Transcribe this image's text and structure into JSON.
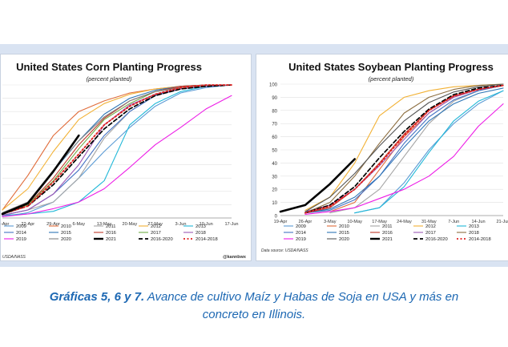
{
  "chart_data": [
    {
      "id": "corn",
      "type": "line",
      "title": "United States Corn Planting Progress",
      "subtitle": "(percent planted)",
      "xlabel": "",
      "ylabel": "",
      "ylim": [
        0,
        100
      ],
      "x_ticks": [
        "15-Apr",
        "22-Apr",
        "29-Apr",
        "6-May",
        "13-May",
        "20-May",
        "27-May",
        "3-Jun",
        "10-Jun",
        "17-Jun"
      ],
      "x": [
        0,
        1,
        2,
        3,
        4,
        5,
        6,
        7,
        8,
        9
      ],
      "series": [
        {
          "name": "2009",
          "color": "#5b9bd5",
          "dash": "solid",
          "width": 1.1,
          "values": [
            1,
            4,
            12,
            30,
            50,
            68,
            84,
            94,
            98,
            100
          ]
        },
        {
          "name": "2010",
          "color": "#e06c3a",
          "dash": "solid",
          "width": 1.1,
          "values": [
            6,
            32,
            62,
            80,
            88,
            94,
            97,
            99,
            100,
            100
          ]
        },
        {
          "name": "2011",
          "color": "#a5a5a5",
          "dash": "solid",
          "width": 1.1,
          "values": [
            2,
            6,
            12,
            30,
            60,
            80,
            92,
            97,
            99,
            100
          ]
        },
        {
          "name": "2012",
          "color": "#f2b134",
          "dash": "solid",
          "width": 1.1,
          "values": [
            6,
            22,
            50,
            74,
            86,
            93,
            97,
            99,
            100,
            100
          ]
        },
        {
          "name": "2013",
          "color": "#21b8d8",
          "dash": "solid",
          "width": 1.1,
          "values": [
            2,
            3,
            5,
            12,
            28,
            70,
            86,
            95,
            99,
            100
          ]
        },
        {
          "name": "2014",
          "color": "#4472c4",
          "dash": "solid",
          "width": 1.1,
          "values": [
            2,
            6,
            18,
            36,
            62,
            80,
            92,
            97,
            99,
            100
          ]
        },
        {
          "name": "2015",
          "color": "#2e75b6",
          "dash": "solid",
          "width": 1.1,
          "values": [
            3,
            12,
            35,
            58,
            78,
            90,
            96,
            99,
            100,
            100
          ]
        },
        {
          "name": "2016",
          "color": "#c0392b",
          "dash": "solid",
          "width": 1.1,
          "values": [
            3,
            10,
            30,
            55,
            75,
            88,
            95,
            99,
            100,
            100
          ]
        },
        {
          "name": "2017",
          "color": "#70ad47",
          "dash": "solid",
          "width": 1.1,
          "values": [
            3,
            10,
            28,
            52,
            74,
            86,
            95,
            98,
            100,
            100
          ]
        },
        {
          "name": "2018",
          "color": "#9b59b6",
          "dash": "solid",
          "width": 1.1,
          "values": [
            2,
            6,
            18,
            40,
            70,
            85,
            93,
            97,
            99,
            100
          ]
        },
        {
          "name": "2019",
          "color": "#ed1ce6",
          "dash": "solid",
          "width": 1.1,
          "values": [
            1,
            3,
            7,
            12,
            22,
            38,
            55,
            68,
            82,
            92
          ]
        },
        {
          "name": "2020",
          "color": "#808080",
          "dash": "solid",
          "width": 1.1,
          "values": [
            4,
            12,
            36,
            58,
            76,
            88,
            95,
            98,
            100,
            100
          ]
        },
        {
          "name": "2021",
          "color": "#000000",
          "dash": "solid",
          "width": 2.6,
          "values": [
            3,
            11,
            35,
            62,
            null,
            null,
            null,
            null,
            null,
            null
          ]
        },
        {
          "name": "2016-2020",
          "color": "#000000",
          "dash": "dashed",
          "width": 1.7,
          "values": [
            3,
            9,
            25,
            46,
            67,
            82,
            92,
            97,
            99,
            100
          ]
        },
        {
          "name": "2014-2018",
          "color": "#e02020",
          "dash": "dotted",
          "width": 1.8,
          "values": [
            3,
            9,
            27,
            48,
            70,
            84,
            93,
            98,
            100,
            100
          ]
        }
      ],
      "legend": [
        [
          "2009",
          "2010",
          "2011",
          "2012",
          "2013"
        ],
        [
          "2014",
          "2015",
          "2016",
          "2017",
          "2018"
        ],
        [
          "2019",
          "2020",
          "2021",
          "2016-2020",
          "2014-2018"
        ]
      ],
      "source": "USDA/NASS",
      "credit": "@kannbwx"
    },
    {
      "id": "soy",
      "type": "line",
      "title": "United States Soybean Planting Progress",
      "subtitle": "(percent planted)",
      "xlabel": "",
      "ylabel": "",
      "ylim": [
        0,
        100
      ],
      "y_ticks": [
        0,
        10,
        20,
        30,
        40,
        50,
        60,
        70,
        80,
        90,
        100
      ],
      "x_ticks": [
        "19-Apr",
        "26-Apr",
        "3-May",
        "10-May",
        "17-May",
        "24-May",
        "31-May",
        "7-Jun",
        "14-Jun",
        "21-Jun"
      ],
      "x": [
        0,
        1,
        2,
        3,
        4,
        5,
        6,
        7,
        8,
        9
      ],
      "series": [
        {
          "name": "2009",
          "color": "#5b9bd5",
          "dash": "solid",
          "width": 1.1,
          "values": [
            null,
            null,
            null,
            2,
            6,
            25,
            50,
            70,
            85,
            95
          ]
        },
        {
          "name": "2010",
          "color": "#e06c3a",
          "dash": "solid",
          "width": 1.1,
          "values": [
            null,
            null,
            3,
            10,
            35,
            60,
            78,
            90,
            96,
            99
          ]
        },
        {
          "name": "2011",
          "color": "#a5a5a5",
          "dash": "solid",
          "width": 1.1,
          "values": [
            null,
            null,
            2,
            6,
            20,
            45,
            70,
            87,
            95,
            99
          ]
        },
        {
          "name": "2012",
          "color": "#f2b134",
          "dash": "solid",
          "width": 1.1,
          "values": [
            null,
            4,
            14,
            40,
            76,
            90,
            95,
            98,
            99,
            100
          ]
        },
        {
          "name": "2013",
          "color": "#21b8d8",
          "dash": "solid",
          "width": 1.1,
          "values": [
            null,
            null,
            null,
            2,
            6,
            22,
            48,
            72,
            87,
            95
          ]
        },
        {
          "name": "2014",
          "color": "#4472c4",
          "dash": "solid",
          "width": 1.1,
          "values": [
            null,
            2,
            4,
            12,
            30,
            55,
            75,
            88,
            95,
            99
          ]
        },
        {
          "name": "2015",
          "color": "#2e75b6",
          "dash": "solid",
          "width": 1.1,
          "values": [
            null,
            2,
            5,
            14,
            30,
            52,
            72,
            85,
            93,
            97
          ]
        },
        {
          "name": "2016",
          "color": "#c0392b",
          "dash": "solid",
          "width": 1.1,
          "values": [
            null,
            2,
            6,
            20,
            40,
            62,
            80,
            91,
            96,
            99
          ]
        },
        {
          "name": "2017",
          "color": "#9b59b6",
          "dash": "solid",
          "width": 1.1,
          "values": [
            null,
            3,
            8,
            20,
            38,
            58,
            78,
            90,
            96,
            99
          ]
        },
        {
          "name": "2018",
          "color": "#8c6d3f",
          "dash": "solid",
          "width": 1.1,
          "values": [
            null,
            2,
            10,
            30,
            55,
            78,
            90,
            96,
            99,
            100
          ]
        },
        {
          "name": "2019",
          "color": "#ed1ce6",
          "dash": "solid",
          "width": 1.1,
          "values": [
            null,
            1,
            3,
            6,
            13,
            20,
            30,
            45,
            68,
            85
          ]
        },
        {
          "name": "2020",
          "color": "#555555",
          "dash": "solid",
          "width": 1.1,
          "values": [
            null,
            3,
            14,
            32,
            53,
            72,
            86,
            94,
            98,
            100
          ]
        },
        {
          "name": "2021",
          "color": "#000000",
          "dash": "solid",
          "width": 2.6,
          "values": [
            3,
            8,
            24,
            43,
            null,
            null,
            null,
            null,
            null,
            null
          ]
        },
        {
          "name": "2016-2020",
          "color": "#000000",
          "dash": "dashed",
          "width": 1.7,
          "values": [
            null,
            2,
            8,
            22,
            44,
            64,
            81,
            92,
            97,
            99
          ]
        },
        {
          "name": "2014-2018",
          "color": "#e02020",
          "dash": "dotted",
          "width": 1.8,
          "values": [
            null,
            2,
            7,
            20,
            39,
            61,
            80,
            91,
            96,
            99
          ]
        }
      ],
      "legend": [
        [
          "2009",
          "2010",
          "2011",
          "2012",
          "2013"
        ],
        [
          "2014",
          "2015",
          "2016",
          "2017",
          "2018"
        ],
        [
          "2019",
          "2020",
          "2021",
          "2016-2020",
          "2014-2018"
        ]
      ],
      "source": "Data source: USDA/NASS"
    }
  ],
  "caption": {
    "label": "Gráficas 5, 6 y 7.",
    "line1": " Avance de cultivo Maíz y Habas de Soja en USA y más en",
    "line2": "concreto en Illinois."
  }
}
